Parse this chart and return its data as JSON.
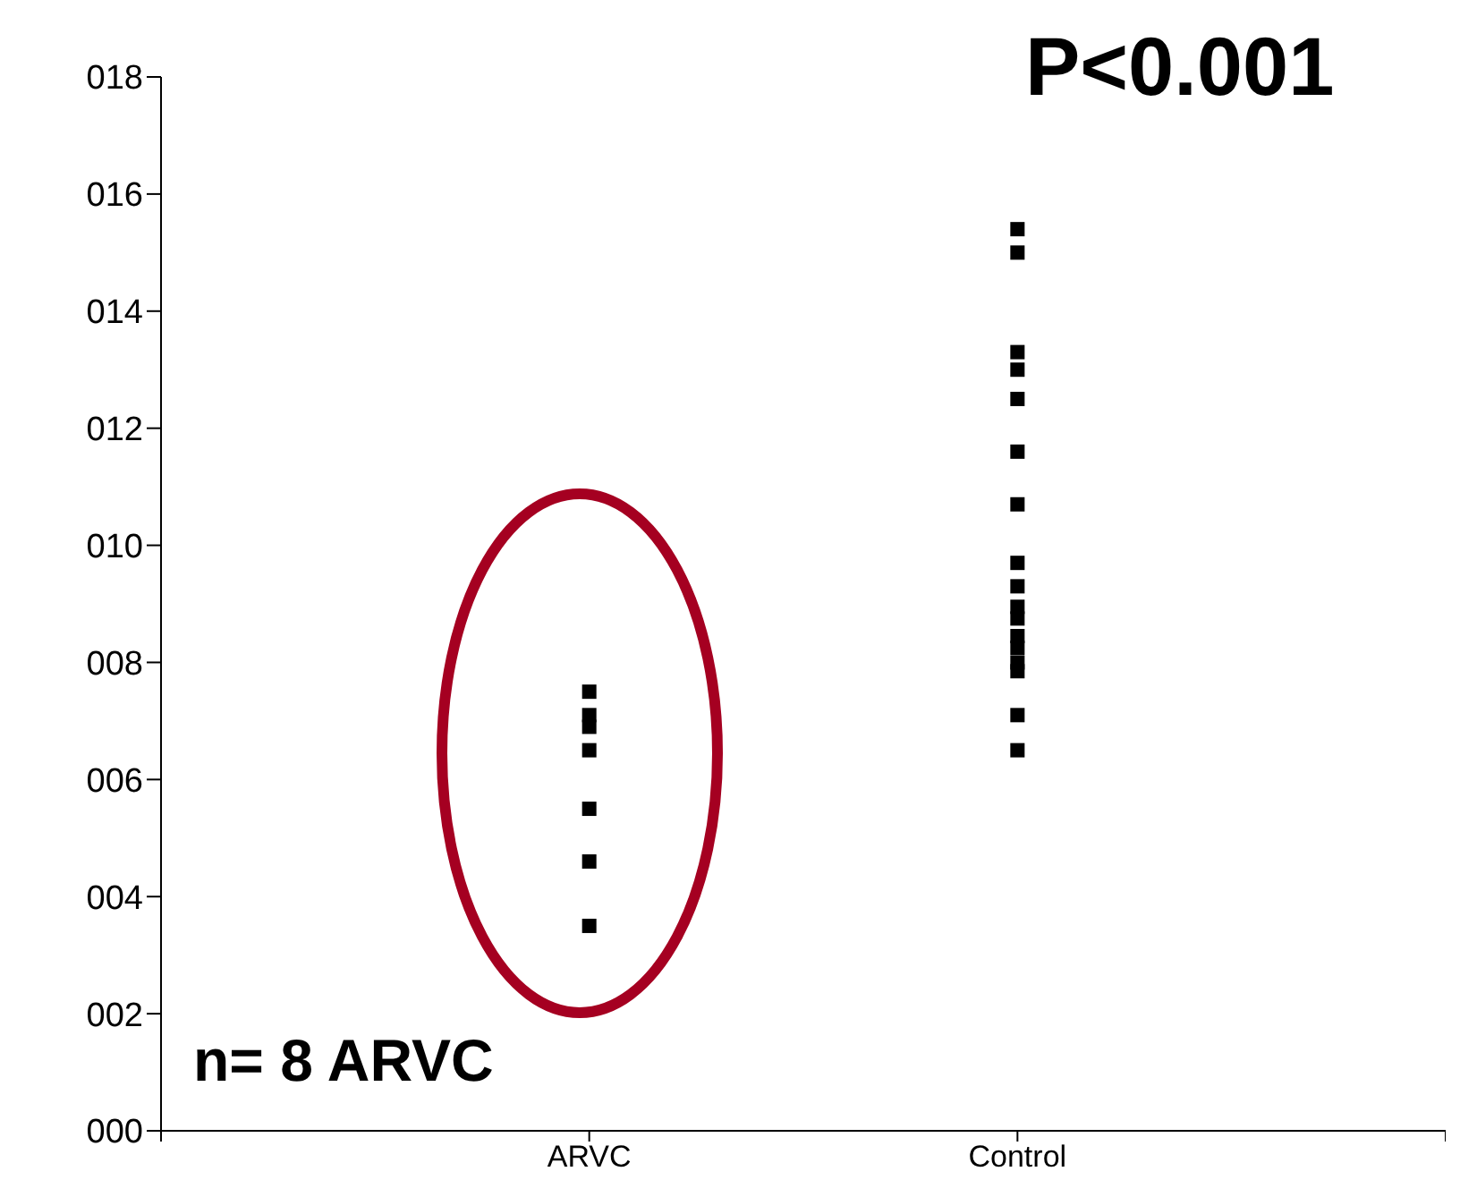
{
  "chart_data": {
    "type": "scatter",
    "categories": [
      "ARVC",
      "Control"
    ],
    "series": [
      {
        "color": "#000000",
        "x": [
          "ARVC",
          "ARVC",
          "ARVC",
          "ARVC",
          "ARVC",
          "ARVC",
          "ARVC",
          "Control",
          "Control",
          "Control",
          "Control",
          "Control",
          "Control",
          "Control",
          "Control",
          "Control",
          "Control",
          "Control",
          "Control",
          "Control",
          "Control",
          "Control",
          "Control",
          "Control"
        ],
        "values": [
          7.5,
          7.1,
          6.9,
          6.5,
          5.5,
          4.6,
          3.5,
          15.4,
          15.0,
          13.3,
          13.0,
          12.5,
          11.6,
          10.7,
          9.7,
          9.3,
          8.95,
          8.75,
          8.45,
          8.25,
          8.0,
          7.85,
          7.1,
          6.5
        ]
      }
    ],
    "ylim": [
      0,
      18
    ],
    "yticks": [
      {
        "value": 0,
        "label": "000"
      },
      {
        "value": 2,
        "label": "002"
      },
      {
        "value": 4,
        "label": "004"
      },
      {
        "value": 6,
        "label": "006"
      },
      {
        "value": 8,
        "label": "008"
      },
      {
        "value": 10,
        "label": "010"
      },
      {
        "value": 12,
        "label": "012"
      },
      {
        "value": 14,
        "label": "014"
      },
      {
        "value": 16,
        "label": "016"
      },
      {
        "value": 18,
        "label": "018"
      }
    ],
    "marker": "square",
    "grid": false,
    "legend": false,
    "annotations": [
      "P<0.001",
      "n= 8 ARVC"
    ]
  }
}
